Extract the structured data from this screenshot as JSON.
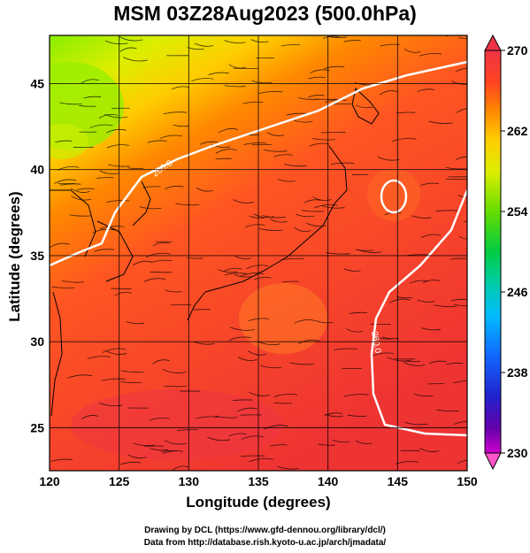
{
  "title": "MSM 03Z28Aug2023 (500.0hPa)",
  "x_axis": {
    "label": "Longitude (degrees)",
    "ticks": [
      "120",
      "125",
      "130",
      "135",
      "140",
      "145",
      "150"
    ],
    "range": [
      120,
      150
    ]
  },
  "y_axis": {
    "label": "Latitude  (degrees)",
    "ticks": [
      "25",
      "30",
      "35",
      "40",
      "45"
    ],
    "range": [
      22.5,
      47.8
    ]
  },
  "colorbar": {
    "ticks": [
      "270",
      "262",
      "254",
      "246",
      "238",
      "230"
    ],
    "range": [
      230,
      270
    ],
    "colors": [
      "#ff55aa",
      "#cc00cc",
      "#6600aa",
      "#2222cc",
      "#1166ff",
      "#00bbff",
      "#00ccaa",
      "#00cc44",
      "#66dd00",
      "#ddee00",
      "#ffcc00",
      "#ff8800",
      "#ff4422",
      "#ee3344"
    ]
  },
  "contour_label": "260.0",
  "credits": {
    "line1": "Drawing by DCL (https://www.gfd-dennou.org/library/dcl/)",
    "line2": "Data from http://database.rish.kyoto-u.ac.jp/arch/jmadata/"
  },
  "field_colors": {
    "cold": "#88ee00",
    "cool": "#ffcc00",
    "mid": "#ff8800",
    "warm": "#ff5522",
    "hot": "#ee3333"
  }
}
